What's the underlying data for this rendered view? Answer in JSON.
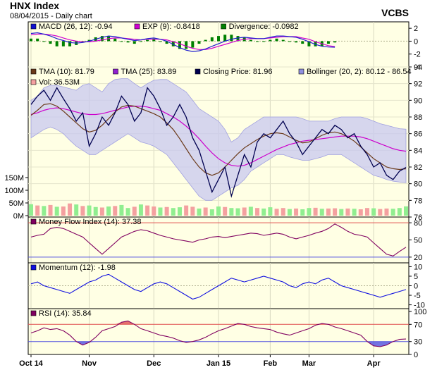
{
  "header": {
    "title": "HNX Index",
    "subtitle": "08/04/2015 - Daily chart",
    "brand": "VCBS"
  },
  "colors": {
    "panel_bg": "#ffffe4",
    "band_fill": "#c8c8f0",
    "close_line": "#000050",
    "tma10": "#6b3a1a",
    "tma25": "#cc00cc",
    "macd_line": "#2020d0",
    "exp_line": "#d000d0",
    "divergence": "#008000",
    "vol_up": "#90ee90",
    "vol_down": "#f4a0a0",
    "mfi_line": "#800060",
    "momentum_line": "#1010e0",
    "rsi_line": "#800060",
    "overbought": "#e05050",
    "oversold": "#5050e0"
  },
  "chart_data": [
    {
      "type": "line",
      "panel": "macd",
      "legend": [
        {
          "label": "MACD (26, 12): -0.94",
          "color": "#1010d0"
        },
        {
          "label": "EXP (9): -0.8418",
          "color": "#d000d0"
        },
        {
          "label": "Divergence: -0.0982",
          "color": "#008000"
        }
      ],
      "ylim": [
        -4,
        3
      ],
      "yticks": [
        "2",
        "0",
        "-2",
        "-4"
      ],
      "yticks_values": [
        2,
        0,
        -2,
        -4
      ],
      "series": [
        {
          "values": [
            1.2,
            1.3,
            1.1,
            0.8,
            0.4,
            0.1,
            -0.2,
            -0.3,
            -0.2,
            0.0,
            0.3,
            0.6,
            0.8,
            0.7,
            0.5,
            0.3,
            0.1,
            0.2,
            0.4,
            0.5,
            0.3,
            0.0,
            -0.5,
            -1.0,
            -1.4,
            -1.6,
            -1.5,
            -1.2,
            -0.8,
            -0.4,
            0.0,
            0.3,
            0.5,
            0.6,
            0.5,
            0.4,
            0.4,
            0.6,
            0.8,
            0.8,
            0.7,
            0.6,
            0.3,
            -0.1,
            -0.5,
            -0.8,
            -0.9,
            -0.94
          ]
        },
        {
          "values": [
            1.0,
            1.1,
            1.1,
            1.0,
            0.8,
            0.5,
            0.2,
            0.0,
            -0.1,
            -0.1,
            0.0,
            0.2,
            0.4,
            0.5,
            0.5,
            0.4,
            0.3,
            0.2,
            0.3,
            0.3,
            0.3,
            0.2,
            -0.1,
            -0.4,
            -0.8,
            -1.1,
            -1.3,
            -1.3,
            -1.1,
            -0.8,
            -0.5,
            -0.2,
            0.1,
            0.3,
            0.4,
            0.4,
            0.4,
            0.5,
            0.6,
            0.7,
            0.7,
            0.7,
            0.5,
            0.3,
            -0.1,
            -0.4,
            -0.7,
            -0.84
          ]
        }
      ]
    },
    {
      "type": "line",
      "panel": "price",
      "legend": [
        {
          "label": "TMA (10): 81.79",
          "color": "#6b3a1a"
        },
        {
          "label": "TMA (25): 83.89",
          "color": "#9020d0"
        },
        {
          "label": "Closing Price: 81.96",
          "color": "#000050"
        },
        {
          "label": "Bollinger (20, 2): 80.12 - 86.54",
          "color": "#9090e0"
        },
        {
          "label": "Vol: 36.53M",
          "color": "#f4a0a0"
        }
      ],
      "ylim": [
        76,
        94
      ],
      "yticks": [
        "94",
        "92",
        "90",
        "88",
        "86",
        "84",
        "82",
        "80",
        "78",
        "76"
      ],
      "yticks_values": [
        94,
        92,
        90,
        88,
        86,
        84,
        82,
        80,
        78,
        76
      ],
      "vol_ticks": [
        "150M",
        "100M",
        "50M",
        "0M"
      ],
      "vol_ticks_values": [
        150,
        100,
        50,
        0
      ],
      "vol_max": 150,
      "close": [
        89.5,
        90.5,
        91.2,
        90.0,
        91.5,
        90.2,
        89.0,
        87.5,
        88.5,
        84.5,
        86.0,
        88.0,
        87.0,
        88.5,
        90.5,
        89.5,
        87.5,
        88.5,
        91.5,
        90.5,
        89.0,
        87.0,
        88.0,
        89.5,
        88.0,
        85.5,
        84.0,
        81.5,
        79.0,
        80.5,
        82.0,
        78.5,
        81.0,
        83.5,
        82.0,
        85.0,
        86.0,
        85.5,
        86.5,
        87.5,
        86.0,
        85.0,
        83.5,
        84.5,
        85.5,
        86.5,
        86.0,
        87.0,
        86.5,
        85.5,
        86.0,
        84.5,
        83.5,
        82.0,
        82.5,
        81.0,
        80.5,
        81.5,
        81.96
      ],
      "tma10": [
        88.2,
        88.8,
        89.5,
        89.6,
        89.3,
        88.7,
        88.0,
        87.3,
        86.6,
        86.2,
        86.4,
        87.0,
        87.8,
        88.6,
        89.2,
        89.4,
        89.3,
        89.0,
        88.7,
        88.4,
        88.0,
        87.3,
        86.5,
        85.4,
        84.2,
        83.0,
        82.0,
        81.3,
        81.0,
        81.3,
        82.0,
        82.8,
        83.6,
        84.3,
        84.8,
        85.3,
        85.7,
        86.0,
        86.1,
        86.0,
        85.6,
        85.2,
        84.9,
        85.0,
        85.4,
        85.8,
        86.1,
        86.2,
        86.0,
        85.6,
        85.1,
        84.4,
        83.7,
        83.0,
        82.5,
        82.0,
        81.8,
        81.7,
        81.79
      ],
      "tma25": [
        88.3,
        88.5,
        88.8,
        89.0,
        89.1,
        89.0,
        88.8,
        88.6,
        88.4,
        88.3,
        88.3,
        88.4,
        88.6,
        88.8,
        89.0,
        89.2,
        89.3,
        89.3,
        89.2,
        89.0,
        88.8,
        88.4,
        88.0,
        87.5,
        86.9,
        86.2,
        85.4,
        84.5,
        83.7,
        83.0,
        82.5,
        82.2,
        82.1,
        82.2,
        82.5,
        82.9,
        83.3,
        83.7,
        84.1,
        84.4,
        84.7,
        84.9,
        85.1,
        85.2,
        85.3,
        85.4,
        85.5,
        85.6,
        85.7,
        85.7,
        85.7,
        85.6,
        85.4,
        85.1,
        84.8,
        84.5,
        84.2,
        84.0,
        83.89
      ],
      "boll_upper": [
        90.0,
        90.5,
        91.5,
        91.8,
        91.8,
        91.6,
        91.4,
        91.2,
        91.8,
        92.0,
        91.5,
        91.0,
        92.0,
        92.5,
        92.6,
        92.6,
        92.0,
        91.5,
        92.0,
        92.4,
        92.5,
        92.5,
        92.0,
        91.5,
        91.0,
        90.0,
        89.0,
        88.5,
        88.0,
        87.5,
        86.5,
        85.0,
        85.5,
        86.5,
        87.0,
        87.5,
        88.0,
        88.0,
        88.0,
        88.0,
        88.0,
        88.0,
        87.8,
        87.5,
        87.5,
        87.5,
        87.5,
        87.8,
        88.0,
        88.0,
        88.0,
        88.0,
        87.8,
        87.5,
        87.2,
        87.0,
        86.8,
        86.6,
        86.54
      ],
      "boll_lower": [
        85.5,
        86.0,
        86.5,
        86.8,
        86.5,
        86.0,
        85.2,
        84.5,
        84.0,
        83.5,
        83.5,
        84.0,
        84.5,
        85.0,
        85.5,
        86.0,
        85.5,
        85.0,
        84.8,
        84.5,
        84.0,
        83.5,
        82.5,
        81.5,
        80.5,
        79.5,
        78.5,
        78.0,
        78.0,
        78.5,
        79.0,
        79.5,
        79.8,
        80.5,
        81.5,
        82.0,
        82.5,
        83.0,
        83.5,
        83.5,
        83.2,
        83.0,
        82.8,
        82.8,
        83.0,
        83.2,
        83.5,
        83.5,
        83.5,
        83.0,
        82.5,
        82.0,
        81.5,
        81.0,
        80.8,
        80.5,
        80.3,
        80.2,
        80.12
      ],
      "volume": [
        45,
        40,
        38,
        42,
        35,
        36,
        48,
        44,
        38,
        40,
        34,
        32,
        36,
        38,
        42,
        30,
        35,
        44,
        40,
        36,
        32,
        34,
        30,
        33,
        40,
        35,
        28,
        32,
        25,
        36,
        34,
        30,
        29,
        32,
        35,
        30,
        28,
        33,
        27,
        30,
        26,
        28,
        25,
        30,
        31,
        27,
        28,
        29,
        26,
        28,
        27,
        25,
        30,
        29,
        26,
        28,
        27,
        30,
        36.53
      ],
      "volume_up": [
        true,
        false,
        true,
        false,
        true,
        false,
        false,
        true,
        false,
        true,
        true,
        false,
        true,
        false,
        true,
        true,
        false,
        true,
        false,
        false,
        true,
        false,
        true,
        true,
        false,
        false,
        true,
        false,
        true,
        true,
        false,
        true,
        true,
        false,
        true,
        false,
        true,
        true,
        false,
        false,
        true,
        false,
        true,
        true,
        false,
        true,
        false,
        false,
        true,
        false,
        true,
        false,
        false,
        true,
        false,
        false,
        true,
        true,
        true
      ],
      "x_labels": [
        "Oct 14",
        "Nov",
        "Dec",
        "Jan 15",
        "Feb",
        "Mar",
        "Apr"
      ],
      "x_label_index": [
        0,
        9,
        19,
        29,
        37,
        43,
        53
      ]
    },
    {
      "type": "line",
      "panel": "mfi",
      "legend": [
        {
          "label": "Money Flow Index (14): 37.38",
          "color": "#800060"
        }
      ],
      "ylim": [
        10,
        90
      ],
      "yticks": [
        "80",
        "50",
        "20"
      ],
      "yticks_values": [
        80,
        50,
        20
      ],
      "levels": [
        80,
        20
      ],
      "values": [
        55,
        58,
        60,
        70,
        72,
        70,
        65,
        60,
        55,
        45,
        35,
        25,
        35,
        45,
        55,
        60,
        65,
        68,
        66,
        62,
        58,
        55,
        52,
        50,
        48,
        46,
        50,
        52,
        55,
        56,
        54,
        56,
        58,
        60,
        62,
        61,
        58,
        60,
        62,
        60,
        55,
        52,
        55,
        58,
        62,
        65,
        70,
        78,
        72,
        65,
        60,
        58,
        55,
        45,
        35,
        25,
        22,
        30,
        37.38
      ]
    },
    {
      "type": "line",
      "panel": "momentum",
      "legend": [
        {
          "label": "Momentum (12): -1.98",
          "color": "#1010e0"
        }
      ],
      "ylim": [
        -10,
        10
      ],
      "yticks": [
        "10",
        "5",
        "0",
        "-5",
        "-10"
      ],
      "yticks_values": [
        10,
        5,
        0,
        -5,
        -10
      ],
      "values": [
        1,
        2,
        0,
        -1,
        -2,
        -3,
        -4,
        -2,
        0,
        2,
        3,
        5,
        6,
        4,
        2,
        0,
        -2,
        -3,
        -1,
        1,
        2,
        1,
        -1,
        -3,
        -5,
        -7,
        -6,
        -4,
        -2,
        0,
        2,
        4,
        3,
        2,
        3,
        4,
        5,
        4,
        3,
        2,
        0,
        -1,
        1,
        2,
        1,
        3,
        4,
        2,
        0,
        -1,
        -2,
        -3,
        -4,
        -5,
        -6,
        -5,
        -4,
        -3,
        -1.98
      ]
    },
    {
      "type": "line",
      "panel": "rsi",
      "legend": [
        {
          "label": "RSI (14): 35.84",
          "color": "#800060"
        }
      ],
      "ylim": [
        0,
        100
      ],
      "yticks": [
        "100",
        "70",
        "30",
        "0"
      ],
      "yticks_values": [
        100,
        70,
        30,
        0
      ],
      "levels": [
        70,
        30
      ],
      "values": [
        50,
        55,
        62,
        58,
        60,
        55,
        45,
        30,
        22,
        28,
        40,
        55,
        60,
        65,
        75,
        78,
        70,
        60,
        55,
        50,
        45,
        42,
        38,
        32,
        28,
        30,
        34,
        40,
        48,
        55,
        60,
        66,
        72,
        70,
        65,
        62,
        60,
        58,
        52,
        48,
        45,
        50,
        55,
        60,
        68,
        72,
        70,
        64,
        60,
        55,
        50,
        45,
        30,
        20,
        18,
        22,
        30,
        35,
        35.84
      ]
    }
  ]
}
